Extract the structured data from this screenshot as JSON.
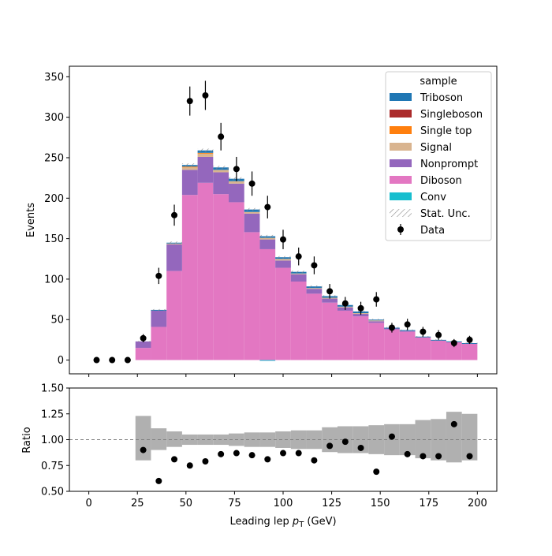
{
  "chart_data": {
    "type": "bar",
    "xlabel": "Leading lep $p_T$ (GeV)",
    "xlabel_display": {
      "main": "Leading lep ",
      "p": "p",
      "sub": "T",
      "unit": " (GeV)"
    },
    "main_panel": {
      "ylabel": "Events",
      "xlim": [
        -10,
        210
      ],
      "ylim": [
        -17,
        363
      ],
      "yticks": [
        0,
        50,
        100,
        150,
        200,
        250,
        300,
        350
      ],
      "bin_edges": [
        0,
        8,
        16,
        24,
        32,
        40,
        48,
        56,
        64,
        72,
        80,
        88,
        96,
        104,
        112,
        120,
        128,
        136,
        144,
        152,
        160,
        168,
        176,
        184,
        192,
        200
      ],
      "stack_order": [
        "Conv",
        "Diboson",
        "Nonprompt",
        "Signal",
        "Single top",
        "Singleboson",
        "Triboson"
      ],
      "series": [
        {
          "name": "Conv",
          "color": "#17becf",
          "values": [
            0,
            0,
            0,
            0,
            0,
            0,
            0,
            0,
            0,
            0,
            0,
            -1,
            0,
            0,
            0,
            0,
            0,
            0,
            0,
            0,
            0,
            0,
            0,
            0,
            0
          ]
        },
        {
          "name": "Diboson",
          "color": "#e377c2",
          "values": [
            0,
            0,
            0,
            15,
            41,
            110,
            204,
            219,
            205,
            195,
            158,
            137,
            114,
            97,
            82,
            71,
            61,
            54,
            46,
            38,
            35,
            28,
            24,
            22,
            20
          ]
        },
        {
          "name": "Nonprompt",
          "color": "#9467bd",
          "values": [
            0,
            0,
            0,
            8,
            20,
            33,
            31,
            32,
            27,
            23,
            23,
            12,
            9,
            9,
            6,
            5,
            4,
            3,
            2,
            1,
            1,
            0,
            0,
            0,
            0
          ]
        },
        {
          "name": "Signal",
          "color": "#d9b48f",
          "values": [
            0,
            0,
            0,
            0,
            0,
            1,
            3,
            4,
            3,
            3,
            2,
            2,
            2,
            1,
            1,
            1,
            1,
            1,
            1,
            0,
            0,
            0,
            0,
            0,
            0
          ]
        },
        {
          "name": "Single top",
          "color": "#ff7f0e",
          "values": [
            0,
            0,
            0,
            0,
            0,
            0,
            1,
            1,
            0,
            0,
            0,
            0,
            0,
            0,
            0,
            0,
            0,
            0,
            0,
            0,
            0,
            0,
            0,
            0,
            0
          ]
        },
        {
          "name": "Singleboson",
          "color": "#ab2b2b",
          "values": [
            0,
            0,
            0,
            0,
            0,
            0,
            0,
            0,
            0,
            0,
            0,
            0,
            0,
            0,
            0,
            0,
            0,
            0,
            0,
            0,
            0,
            0,
            0,
            0,
            0
          ]
        },
        {
          "name": "Triboson",
          "color": "#1f77b4",
          "values": [
            0,
            0,
            0,
            0,
            1,
            1,
            2,
            3,
            3,
            3,
            3,
            2,
            2,
            2,
            2,
            2,
            2,
            2,
            1,
            1,
            1,
            1,
            1,
            1,
            1
          ]
        }
      ],
      "stat_unc": [
        0,
        0,
        0,
        0.6,
        1,
        1.5,
        2,
        2.2,
        2,
        1.9,
        1.8,
        1.6,
        1.4,
        1.3,
        1.2,
        1.1,
        1,
        1,
        0.9,
        0.8,
        0.8,
        0.7,
        0.7,
        0.7,
        0.7
      ],
      "data": {
        "name": "Data",
        "x": [
          4,
          12,
          20,
          28,
          36,
          44,
          52,
          60,
          68,
          76,
          84,
          92,
          100,
          108,
          116,
          124,
          132,
          140,
          148,
          156,
          164,
          172,
          180,
          188,
          196
        ],
        "y": [
          0,
          0,
          0,
          27,
          104,
          179,
          320,
          327,
          276,
          236,
          218,
          189,
          149,
          128,
          117,
          85,
          70,
          64,
          75,
          40,
          44,
          35,
          31,
          21,
          25
        ],
        "yerr": [
          0,
          0,
          0,
          5,
          10,
          13,
          18,
          18,
          17,
          15,
          15,
          14,
          12,
          11,
          11,
          9,
          8,
          8,
          9,
          6,
          7,
          6,
          6,
          5,
          5
        ]
      }
    },
    "ratio_panel": {
      "ylabel": "Ratio",
      "ylim": [
        0.5,
        1.5
      ],
      "yticks": [
        "0.50",
        "0.75",
        "1.00",
        "1.25",
        "1.50"
      ],
      "ytick_values": [
        0.5,
        0.75,
        1.0,
        1.25,
        1.5
      ],
      "reference_line": 1.0,
      "unc_band_low": [
        null,
        null,
        null,
        0.8,
        0.9,
        0.93,
        0.95,
        0.95,
        0.95,
        0.94,
        0.93,
        0.93,
        0.92,
        0.91,
        0.91,
        0.88,
        0.87,
        0.87,
        0.86,
        0.85,
        0.85,
        0.82,
        0.8,
        0.78,
        0.8
      ],
      "unc_band_high": [
        null,
        null,
        null,
        1.23,
        1.11,
        1.08,
        1.05,
        1.05,
        1.05,
        1.06,
        1.07,
        1.07,
        1.08,
        1.09,
        1.09,
        1.12,
        1.13,
        1.13,
        1.14,
        1.15,
        1.15,
        1.19,
        1.2,
        1.27,
        1.25
      ],
      "x": [
        4,
        12,
        20,
        28,
        36,
        44,
        52,
        60,
        68,
        76,
        84,
        92,
        100,
        108,
        116,
        124,
        132,
        140,
        148,
        156,
        164,
        172,
        180,
        188,
        196
      ],
      "ratio": [
        null,
        null,
        null,
        0.9,
        0.6,
        0.81,
        0.75,
        0.79,
        0.86,
        0.87,
        0.85,
        0.81,
        0.87,
        0.87,
        0.8,
        0.94,
        0.98,
        0.92,
        0.69,
        1.03,
        0.86,
        0.84,
        0.84,
        1.15,
        0.84
      ]
    },
    "xticks": [
      0,
      25,
      50,
      75,
      100,
      125,
      150,
      175,
      200
    ],
    "legend": {
      "title": "sample",
      "placement": "top-right",
      "entries": [
        "Triboson",
        "Singleboson",
        "Single top",
        "Signal",
        "Nonprompt",
        "Diboson",
        "Conv",
        "Stat. Unc.",
        "Data"
      ]
    },
    "grid": false
  }
}
